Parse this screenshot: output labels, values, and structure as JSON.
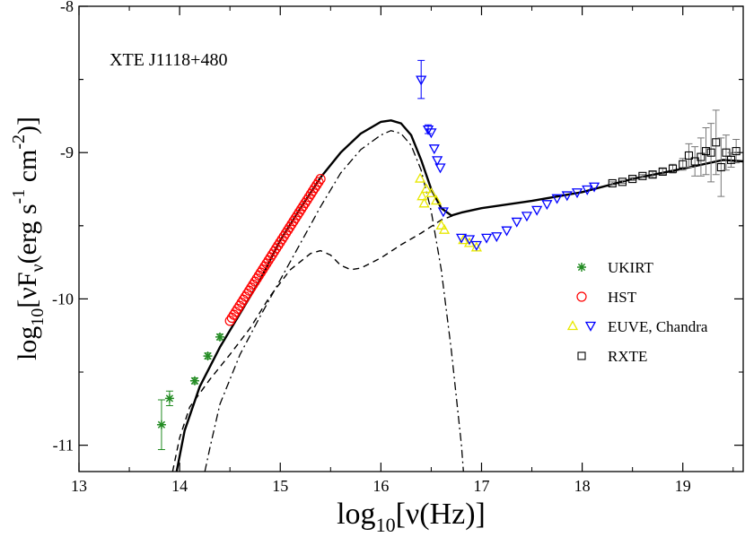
{
  "chart_data": {
    "type": "scatter",
    "title": "",
    "annotation": "XTE J1118+480",
    "xlabel": {
      "pre": "log",
      "sub": "10",
      "post": "[ν(Hz)]"
    },
    "ylabel": {
      "pre": "log",
      "sub": "10",
      "nu": "νF",
      "nu_sub": "ν",
      "open": "(erg s",
      "s_sup": "-1",
      "cm": " cm",
      "cm_sup": "-2",
      "close": ")]"
    },
    "xlim": [
      13,
      19.6
    ],
    "ylim": [
      -11.18,
      -8
    ],
    "x_ticks": [
      13,
      14,
      15,
      16,
      17,
      18,
      19
    ],
    "x_tick_labels": [
      "13",
      "14",
      "15",
      "16",
      "17",
      "18",
      "19"
    ],
    "y_ticks": [
      -11,
      -10,
      -9,
      -8
    ],
    "y_tick_labels": [
      "-11",
      "-10",
      "-9",
      "-8"
    ],
    "legend_position": "right",
    "colors": {
      "ukirt": "#228B22",
      "hst": "#ff0000",
      "euve_up": "#e8e800",
      "euve_down": "#0000ff",
      "rxte": "#000000",
      "model": "#000000"
    },
    "legend": [
      {
        "label": "UKIRT",
        "marker": "star"
      },
      {
        "label": "HST",
        "marker": "circle"
      },
      {
        "label": "EUVE, Chandra",
        "marker": "triangles"
      },
      {
        "label": "RXTE",
        "marker": "square"
      }
    ],
    "series": [
      {
        "name": "UKIRT",
        "marker": "star",
        "points": [
          {
            "x": 13.82,
            "y": -10.86,
            "err": 0.17
          },
          {
            "x": 13.9,
            "y": -10.68,
            "err": 0.05
          },
          {
            "x": 14.15,
            "y": -10.56,
            "err": 0.02
          },
          {
            "x": 14.28,
            "y": -10.39,
            "err": 0.02
          },
          {
            "x": 14.4,
            "y": -10.26,
            "err": 0.02
          }
        ]
      },
      {
        "name": "HST",
        "marker": "circle",
        "x_start": 14.5,
        "x_end": 15.4,
        "y_start": -10.15,
        "y_end": -9.18,
        "count": 48
      },
      {
        "name": "EUVE/Chandra upper",
        "marker": "triangle-up",
        "points": [
          {
            "x": 16.39,
            "y": -9.18
          },
          {
            "x": 16.41,
            "y": -9.3
          },
          {
            "x": 16.43,
            "y": -9.35
          },
          {
            "x": 16.45,
            "y": -9.25
          },
          {
            "x": 16.5,
            "y": -9.28
          },
          {
            "x": 16.55,
            "y": -9.33
          },
          {
            "x": 16.6,
            "y": -9.5
          },
          {
            "x": 16.63,
            "y": -9.53
          },
          {
            "x": 16.82,
            "y": -9.6
          },
          {
            "x": 16.88,
            "y": -9.62
          },
          {
            "x": 16.95,
            "y": -9.65
          }
        ]
      },
      {
        "name": "EUVE/Chandra lower",
        "marker": "triangle-down",
        "points": [
          {
            "x": 16.4,
            "y": -8.5,
            "err": 0.13
          },
          {
            "x": 16.47,
            "y": -8.84,
            "err": 0.03
          },
          {
            "x": 16.5,
            "y": -8.86
          },
          {
            "x": 16.53,
            "y": -8.97
          },
          {
            "x": 16.56,
            "y": -9.05
          },
          {
            "x": 16.59,
            "y": -9.1
          },
          {
            "x": 16.62,
            "y": -9.4
          },
          {
            "x": 16.8,
            "y": -9.58
          },
          {
            "x": 16.88,
            "y": -9.59
          },
          {
            "x": 16.95,
            "y": -9.63
          },
          {
            "x": 17.05,
            "y": -9.58
          },
          {
            "x": 17.15,
            "y": -9.57
          },
          {
            "x": 17.25,
            "y": -9.53
          },
          {
            "x": 17.35,
            "y": -9.47
          },
          {
            "x": 17.45,
            "y": -9.43
          },
          {
            "x": 17.55,
            "y": -9.39
          },
          {
            "x": 17.65,
            "y": -9.35
          },
          {
            "x": 17.75,
            "y": -9.31
          },
          {
            "x": 17.85,
            "y": -9.29
          },
          {
            "x": 17.95,
            "y": -9.27
          },
          {
            "x": 18.05,
            "y": -9.25
          },
          {
            "x": 18.12,
            "y": -9.23
          }
        ]
      },
      {
        "name": "RXTE",
        "marker": "square",
        "points": [
          {
            "x": 18.3,
            "y": -9.21,
            "err": 0.01
          },
          {
            "x": 18.4,
            "y": -9.2,
            "err": 0.01
          },
          {
            "x": 18.5,
            "y": -9.18,
            "err": 0.01
          },
          {
            "x": 18.6,
            "y": -9.16,
            "err": 0.01
          },
          {
            "x": 18.7,
            "y": -9.15,
            "err": 0.02
          },
          {
            "x": 18.8,
            "y": -9.13,
            "err": 0.02
          },
          {
            "x": 18.9,
            "y": -9.11,
            "err": 0.03
          },
          {
            "x": 19.0,
            "y": -9.08,
            "err": 0.04
          },
          {
            "x": 19.06,
            "y": -9.02,
            "err": 0.08
          },
          {
            "x": 19.12,
            "y": -9.06,
            "err": 0.1
          },
          {
            "x": 19.18,
            "y": -9.03,
            "err": 0.13
          },
          {
            "x": 19.23,
            "y": -8.99,
            "err": 0.16
          },
          {
            "x": 19.28,
            "y": -9.0,
            "err": 0.2
          },
          {
            "x": 19.33,
            "y": -8.93,
            "err": 0.22
          },
          {
            "x": 19.38,
            "y": -9.1,
            "err": 0.2
          },
          {
            "x": 19.43,
            "y": -9.0,
            "err": 0.12
          },
          {
            "x": 19.48,
            "y": -9.05,
            "err": 0.05
          },
          {
            "x": 19.53,
            "y": -8.99,
            "err": 0.08
          }
        ]
      }
    ],
    "curves": [
      {
        "name": "total model",
        "style": "solid",
        "points": [
          [
            13.97,
            -11.18
          ],
          [
            14.05,
            -10.9
          ],
          [
            14.2,
            -10.6
          ],
          [
            14.4,
            -10.33
          ],
          [
            14.6,
            -10.1
          ],
          [
            14.8,
            -9.87
          ],
          [
            15.0,
            -9.6
          ],
          [
            15.2,
            -9.38
          ],
          [
            15.4,
            -9.17
          ],
          [
            15.6,
            -9.0
          ],
          [
            15.8,
            -8.87
          ],
          [
            16.0,
            -8.79
          ],
          [
            16.1,
            -8.78
          ],
          [
            16.2,
            -8.8
          ],
          [
            16.3,
            -8.88
          ],
          [
            16.4,
            -9.05
          ],
          [
            16.5,
            -9.25
          ],
          [
            16.6,
            -9.38
          ],
          [
            16.7,
            -9.43
          ],
          [
            16.8,
            -9.41
          ],
          [
            17.0,
            -9.38
          ],
          [
            17.5,
            -9.33
          ],
          [
            18.0,
            -9.27
          ],
          [
            18.5,
            -9.18
          ],
          [
            19.0,
            -9.11
          ],
          [
            19.4,
            -9.05
          ],
          [
            19.6,
            -9.06
          ]
        ]
      },
      {
        "name": "thin disk component",
        "style": "dash-dot",
        "points": [
          [
            14.25,
            -11.18
          ],
          [
            14.3,
            -11.02
          ],
          [
            14.4,
            -10.72
          ],
          [
            14.6,
            -10.38
          ],
          [
            14.8,
            -10.12
          ],
          [
            15.0,
            -9.87
          ],
          [
            15.2,
            -9.62
          ],
          [
            15.4,
            -9.37
          ],
          [
            15.6,
            -9.14
          ],
          [
            15.8,
            -8.98
          ],
          [
            16.0,
            -8.88
          ],
          [
            16.1,
            -8.85
          ],
          [
            16.2,
            -8.87
          ],
          [
            16.3,
            -8.95
          ],
          [
            16.4,
            -9.12
          ],
          [
            16.5,
            -9.4
          ],
          [
            16.6,
            -9.8
          ],
          [
            16.7,
            -10.35
          ],
          [
            16.8,
            -11.0
          ],
          [
            16.82,
            -11.18
          ]
        ]
      },
      {
        "name": "corona component",
        "style": "dashed",
        "points": [
          [
            13.93,
            -11.18
          ],
          [
            14.0,
            -10.95
          ],
          [
            14.1,
            -10.74
          ],
          [
            14.3,
            -10.55
          ],
          [
            14.5,
            -10.38
          ],
          [
            14.7,
            -10.2
          ],
          [
            14.9,
            -9.98
          ],
          [
            15.1,
            -9.8
          ],
          [
            15.3,
            -9.69
          ],
          [
            15.4,
            -9.67
          ],
          [
            15.5,
            -9.7
          ],
          [
            15.6,
            -9.77
          ],
          [
            15.7,
            -9.8
          ],
          [
            15.8,
            -9.79
          ],
          [
            16.0,
            -9.72
          ],
          [
            16.2,
            -9.63
          ],
          [
            16.4,
            -9.55
          ],
          [
            16.6,
            -9.46
          ],
          [
            16.8,
            -9.41
          ],
          [
            17.0,
            -9.38
          ],
          [
            17.5,
            -9.33
          ],
          [
            18.0,
            -9.27
          ],
          [
            18.5,
            -9.18
          ],
          [
            19.0,
            -9.11
          ],
          [
            19.4,
            -9.05
          ],
          [
            19.6,
            -9.06
          ]
        ]
      }
    ]
  }
}
